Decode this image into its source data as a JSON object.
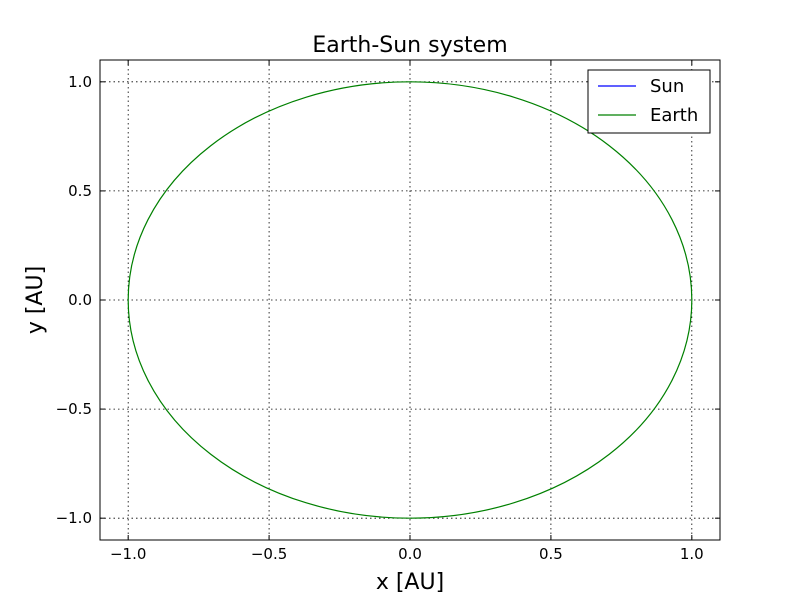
{
  "chart_data": {
    "type": "line",
    "title": "Earth-Sun system",
    "xlabel": "x [AU]",
    "ylabel": "y [AU]",
    "xlim": [
      -1.1,
      1.1
    ],
    "ylim": [
      -1.1,
      1.1
    ],
    "xticks": [
      -1.0,
      -0.5,
      0.0,
      0.5,
      1.0
    ],
    "yticks": [
      -1.0,
      -0.5,
      0.0,
      0.5,
      1.0
    ],
    "xtick_labels": [
      "−1.0",
      "−0.5",
      "0.0",
      "0.5",
      "1.0"
    ],
    "ytick_labels": [
      "−1.0",
      "−0.5",
      "0.0",
      "0.5",
      "1.0"
    ],
    "grid": true,
    "legend_position": "top-right",
    "series": [
      {
        "name": "Sun",
        "color": "#0000ff",
        "x": [
          0.0
        ],
        "y": [
          0.0
        ]
      },
      {
        "name": "Earth",
        "color": "#008000",
        "shape": "circle",
        "center": [
          0.0,
          0.0
        ],
        "radius": 1.0
      }
    ]
  }
}
